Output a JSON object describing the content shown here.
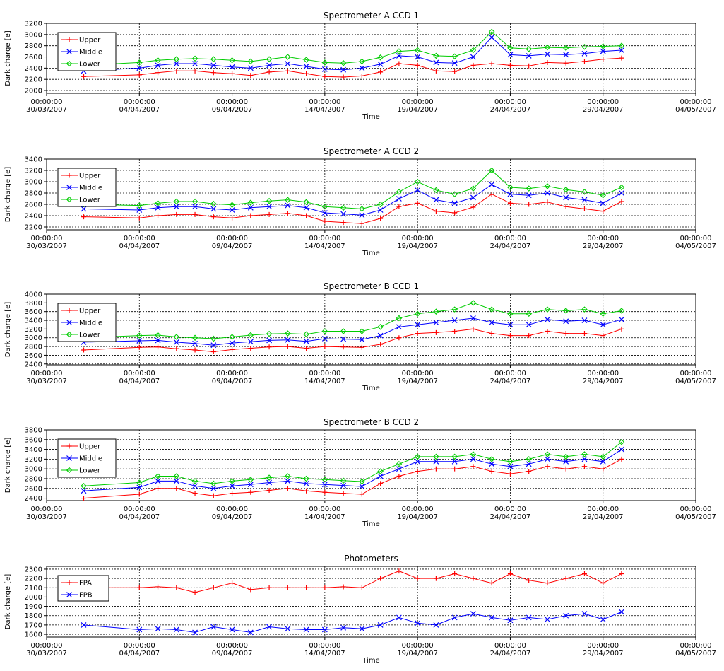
{
  "chart_data": [
    {
      "type": "line",
      "title": "Spectrometer A CCD 1",
      "xlabel": "Time",
      "ylabel": "Dark charge [e]",
      "x_ticks": [
        "00:00:00 30/03/2007",
        "00:00:00 04/04/2007",
        "00:00:00 09/04/2007",
        "00:00:00 14/04/2007",
        "00:00:00 19/04/2007",
        "00:00:00 24/04/2007",
        "00:00:00 29/04/2007",
        "00:00:00 04/05/2007"
      ],
      "xlim": [
        "2007-03-30",
        "2007-05-04"
      ],
      "ylim": [
        1950,
        3200
      ],
      "y_ticks": [
        2000,
        2200,
        2400,
        2600,
        2800,
        3000,
        3200
      ],
      "grid": true,
      "legend_position": "top-left",
      "x": [
        "2007-04-01",
        "2007-04-04",
        "2007-04-05",
        "2007-04-06",
        "2007-04-07",
        "2007-04-08",
        "2007-04-09",
        "2007-04-10",
        "2007-04-11",
        "2007-04-12",
        "2007-04-13",
        "2007-04-14",
        "2007-04-15",
        "2007-04-16",
        "2007-04-17",
        "2007-04-18",
        "2007-04-19",
        "2007-04-20",
        "2007-04-21",
        "2007-04-22",
        "2007-04-23",
        "2007-04-24",
        "2007-04-25",
        "2007-04-26",
        "2007-04-27",
        "2007-04-28",
        "2007-04-29",
        "2007-04-30"
      ],
      "series": [
        {
          "name": "Upper",
          "color": "#ff0000",
          "marker": "+",
          "values": [
            2250,
            2280,
            2320,
            2350,
            2350,
            2320,
            2300,
            2270,
            2330,
            2350,
            2300,
            2250,
            2240,
            2260,
            2330,
            2480,
            2450,
            2350,
            2340,
            2450,
            2480,
            2450,
            2440,
            2500,
            2490,
            2520,
            2560,
            2580
          ]
        },
        {
          "name": "Middle",
          "color": "#0000ff",
          "marker": "x",
          "values": [
            2350,
            2400,
            2450,
            2480,
            2480,
            2450,
            2420,
            2400,
            2450,
            2480,
            2430,
            2380,
            2370,
            2400,
            2470,
            2620,
            2600,
            2500,
            2490,
            2600,
            2950,
            2640,
            2620,
            2650,
            2640,
            2660,
            2700,
            2720
          ]
        },
        {
          "name": "Lower",
          "color": "#00cc00",
          "marker": "diamond",
          "values": [
            2450,
            2500,
            2540,
            2560,
            2570,
            2560,
            2540,
            2520,
            2560,
            2600,
            2550,
            2500,
            2490,
            2520,
            2590,
            2700,
            2720,
            2620,
            2610,
            2720,
            3050,
            2760,
            2740,
            2770,
            2760,
            2780,
            2790,
            2800
          ]
        }
      ]
    },
    {
      "type": "line",
      "title": "Spectrometer A CCD 2",
      "xlabel": "Time",
      "ylabel": "Dark charge [e]",
      "x_ticks": [
        "00:00:00 30/03/2007",
        "00:00:00 04/04/2007",
        "00:00:00 09/04/2007",
        "00:00:00 14/04/2007",
        "00:00:00 19/04/2007",
        "00:00:00 24/04/2007",
        "00:00:00 29/04/2007",
        "00:00:00 04/05/2007"
      ],
      "xlim": [
        "2007-03-30",
        "2007-05-04"
      ],
      "ylim": [
        2150,
        3400
      ],
      "y_ticks": [
        2200,
        2400,
        2600,
        2800,
        3000,
        3200,
        3400
      ],
      "grid": true,
      "legend_position": "top-left",
      "x": [
        "2007-04-01",
        "2007-04-04",
        "2007-04-05",
        "2007-04-06",
        "2007-04-07",
        "2007-04-08",
        "2007-04-09",
        "2007-04-10",
        "2007-04-11",
        "2007-04-12",
        "2007-04-13",
        "2007-04-14",
        "2007-04-15",
        "2007-04-16",
        "2007-04-17",
        "2007-04-18",
        "2007-04-19",
        "2007-04-20",
        "2007-04-21",
        "2007-04-22",
        "2007-04-23",
        "2007-04-24",
        "2007-04-25",
        "2007-04-26",
        "2007-04-27",
        "2007-04-28",
        "2007-04-29",
        "2007-04-30"
      ],
      "series": [
        {
          "name": "Upper",
          "color": "#ff0000",
          "marker": "+",
          "values": [
            2380,
            2360,
            2400,
            2420,
            2420,
            2380,
            2360,
            2400,
            2420,
            2440,
            2400,
            2300,
            2280,
            2260,
            2350,
            2560,
            2620,
            2480,
            2450,
            2550,
            2780,
            2620,
            2600,
            2640,
            2560,
            2520,
            2480,
            2650
          ]
        },
        {
          "name": "Middle",
          "color": "#0000ff",
          "marker": "x",
          "values": [
            2520,
            2500,
            2540,
            2560,
            2560,
            2520,
            2500,
            2540,
            2560,
            2580,
            2540,
            2450,
            2430,
            2410,
            2500,
            2700,
            2850,
            2680,
            2620,
            2720,
            2950,
            2780,
            2760,
            2800,
            2720,
            2680,
            2620,
            2800
          ]
        },
        {
          "name": "Lower",
          "color": "#00cc00",
          "marker": "diamond",
          "values": [
            2600,
            2580,
            2620,
            2650,
            2650,
            2610,
            2590,
            2630,
            2660,
            2680,
            2640,
            2560,
            2540,
            2520,
            2600,
            2820,
            3000,
            2850,
            2780,
            2880,
            3200,
            2900,
            2880,
            2920,
            2860,
            2820,
            2760,
            2900
          ]
        }
      ]
    },
    {
      "type": "line",
      "title": "Spectrometer B CCD 1",
      "xlabel": "Time",
      "ylabel": "Dark charge [e]",
      "x_ticks": [
        "00:00:00 30/03/2007",
        "00:00:00 04/04/2007",
        "00:00:00 09/04/2007",
        "00:00:00 14/04/2007",
        "00:00:00 19/04/2007",
        "00:00:00 24/04/2007",
        "00:00:00 29/04/2007",
        "00:00:00 04/05/2007"
      ],
      "xlim": [
        "2007-03-30",
        "2007-05-04"
      ],
      "ylim": [
        2380,
        4000
      ],
      "y_ticks": [
        2400,
        2600,
        2800,
        3000,
        3200,
        3400,
        3600,
        3800,
        4000
      ],
      "grid": true,
      "legend_position": "top-left",
      "x": [
        "2007-04-01",
        "2007-04-04",
        "2007-04-05",
        "2007-04-06",
        "2007-04-07",
        "2007-04-08",
        "2007-04-09",
        "2007-04-10",
        "2007-04-11",
        "2007-04-12",
        "2007-04-13",
        "2007-04-14",
        "2007-04-15",
        "2007-04-16",
        "2007-04-17",
        "2007-04-18",
        "2007-04-19",
        "2007-04-20",
        "2007-04-21",
        "2007-04-22",
        "2007-04-23",
        "2007-04-24",
        "2007-04-25",
        "2007-04-26",
        "2007-04-27",
        "2007-04-28",
        "2007-04-29",
        "2007-04-30"
      ],
      "series": [
        {
          "name": "Upper",
          "color": "#ff0000",
          "marker": "+",
          "values": [
            2720,
            2780,
            2790,
            2750,
            2720,
            2680,
            2730,
            2760,
            2790,
            2800,
            2760,
            2800,
            2790,
            2780,
            2850,
            3000,
            3100,
            3120,
            3150,
            3200,
            3100,
            3050,
            3050,
            3150,
            3100,
            3100,
            3050,
            3200
          ]
        },
        {
          "name": "Middle",
          "color": "#0000ff",
          "marker": "x",
          "values": [
            2900,
            2930,
            2940,
            2900,
            2870,
            2830,
            2880,
            2910,
            2940,
            2950,
            2920,
            2980,
            2970,
            2960,
            3050,
            3250,
            3300,
            3350,
            3400,
            3450,
            3350,
            3300,
            3300,
            3420,
            3380,
            3400,
            3300,
            3420
          ]
        },
        {
          "name": "Lower",
          "color": "#00cc00",
          "marker": "diamond",
          "values": [
            3000,
            3050,
            3060,
            3020,
            3000,
            2980,
            3020,
            3060,
            3090,
            3100,
            3080,
            3150,
            3150,
            3150,
            3250,
            3450,
            3550,
            3600,
            3650,
            3800,
            3650,
            3550,
            3550,
            3650,
            3620,
            3650,
            3550,
            3620
          ]
        }
      ]
    },
    {
      "type": "line",
      "title": "Spectrometer B CCD 2",
      "xlabel": "Time",
      "ylabel": "Dark charge [e]",
      "x_ticks": [
        "00:00:00 30/03/2007",
        "00:00:00 04/04/2007",
        "00:00:00 09/04/2007",
        "00:00:00 14/04/2007",
        "00:00:00 19/04/2007",
        "00:00:00 24/04/2007",
        "00:00:00 29/04/2007",
        "00:00:00 04/05/2007"
      ],
      "xlim": [
        "2007-03-30",
        "2007-05-04"
      ],
      "ylim": [
        2350,
        3800
      ],
      "y_ticks": [
        2400,
        2600,
        2800,
        3000,
        3200,
        3400,
        3600,
        3800
      ],
      "grid": true,
      "legend_position": "top-left",
      "x": [
        "2007-04-01",
        "2007-04-04",
        "2007-04-05",
        "2007-04-06",
        "2007-04-07",
        "2007-04-08",
        "2007-04-09",
        "2007-04-10",
        "2007-04-11",
        "2007-04-12",
        "2007-04-13",
        "2007-04-14",
        "2007-04-15",
        "2007-04-16",
        "2007-04-17",
        "2007-04-18",
        "2007-04-19",
        "2007-04-20",
        "2007-04-21",
        "2007-04-22",
        "2007-04-23",
        "2007-04-24",
        "2007-04-25",
        "2007-04-26",
        "2007-04-27",
        "2007-04-28",
        "2007-04-29",
        "2007-04-30"
      ],
      "series": [
        {
          "name": "Upper",
          "color": "#ff0000",
          "marker": "+",
          "values": [
            2400,
            2480,
            2600,
            2600,
            2500,
            2450,
            2500,
            2520,
            2560,
            2600,
            2550,
            2520,
            2500,
            2480,
            2700,
            2850,
            2950,
            3000,
            3000,
            3050,
            2950,
            2900,
            2950,
            3050,
            3000,
            3050,
            3000,
            3200
          ]
        },
        {
          "name": "Middle",
          "color": "#0000ff",
          "marker": "x",
          "values": [
            2550,
            2620,
            2750,
            2750,
            2650,
            2600,
            2650,
            2680,
            2720,
            2750,
            2700,
            2680,
            2660,
            2640,
            2850,
            3000,
            3150,
            3150,
            3150,
            3200,
            3100,
            3050,
            3100,
            3200,
            3150,
            3200,
            3150,
            3400
          ]
        },
        {
          "name": "Lower",
          "color": "#00cc00",
          "marker": "diamond",
          "values": [
            2650,
            2720,
            2850,
            2850,
            2750,
            2700,
            2750,
            2780,
            2820,
            2850,
            2800,
            2780,
            2760,
            2740,
            2950,
            3100,
            3250,
            3250,
            3250,
            3300,
            3200,
            3150,
            3200,
            3300,
            3250,
            3300,
            3250,
            3550
          ]
        }
      ]
    },
    {
      "type": "line",
      "title": "Photometers",
      "xlabel": "Time",
      "ylabel": "Dark charge [e]",
      "x_ticks": [
        "00:00:00 30/03/2007",
        "00:00:00 04/04/2007",
        "00:00:00 09/04/2007",
        "00:00:00 14/04/2007",
        "00:00:00 19/04/2007",
        "00:00:00 24/04/2007",
        "00:00:00 29/04/2007",
        "00:00:00 04/05/2007"
      ],
      "xlim": [
        "2007-03-30",
        "2007-05-04"
      ],
      "ylim": [
        1570,
        2330
      ],
      "y_ticks": [
        1600,
        1700,
        1800,
        1900,
        2000,
        2100,
        2200,
        2300
      ],
      "grid": true,
      "legend_position": "top-left",
      "x": [
        "2007-04-01",
        "2007-04-04",
        "2007-04-05",
        "2007-04-06",
        "2007-04-07",
        "2007-04-08",
        "2007-04-09",
        "2007-04-10",
        "2007-04-11",
        "2007-04-12",
        "2007-04-13",
        "2007-04-14",
        "2007-04-15",
        "2007-04-16",
        "2007-04-17",
        "2007-04-18",
        "2007-04-19",
        "2007-04-20",
        "2007-04-21",
        "2007-04-22",
        "2007-04-23",
        "2007-04-24",
        "2007-04-25",
        "2007-04-26",
        "2007-04-27",
        "2007-04-28",
        "2007-04-29",
        "2007-04-30"
      ],
      "series": [
        {
          "name": "FPA",
          "color": "#ff0000",
          "marker": "+",
          "values": [
            2100,
            2100,
            2110,
            2100,
            2050,
            2100,
            2150,
            2080,
            2100,
            2100,
            2100,
            2100,
            2110,
            2100,
            2200,
            2280,
            2200,
            2200,
            2250,
            2200,
            2150,
            2250,
            2180,
            2150,
            2200,
            2250,
            2150,
            2250
          ]
        },
        {
          "name": "FPB",
          "color": "#0000ff",
          "marker": "x",
          "values": [
            1700,
            1650,
            1660,
            1650,
            1620,
            1680,
            1650,
            1620,
            1680,
            1660,
            1650,
            1650,
            1670,
            1660,
            1700,
            1780,
            1720,
            1700,
            1780,
            1820,
            1780,
            1750,
            1780,
            1760,
            1800,
            1820,
            1760,
            1840
          ]
        }
      ]
    }
  ]
}
